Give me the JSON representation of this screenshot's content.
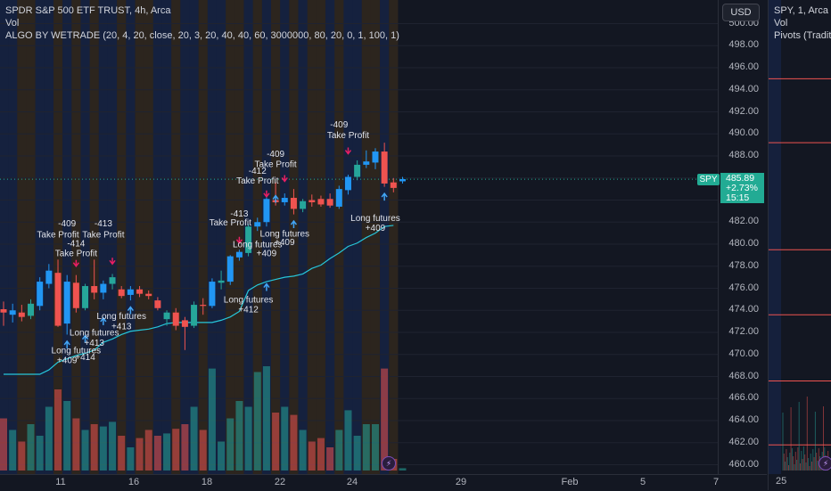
{
  "legend": {
    "title": "SPDR S&P 500 ETF TRUST, 4h, Arca",
    "vol": "Vol",
    "indicator": "ALGO BY WETRADE (20, 4, 20, close, 20, 3, 20, 40, 40, 60, 3000000, 80, 20, 0, 1, 100, 1)"
  },
  "currency_button": "USD",
  "last_price": {
    "symbol": "SPY",
    "price": "485.89",
    "change": "+2.73%",
    "countdown": "15:15"
  },
  "right_pane": {
    "title": "SPY, 1, Arca",
    "vol": "Vol",
    "pivots": "Pivots (Traditi",
    "time_label": "25"
  },
  "colors": {
    "up": "#26a69a",
    "up_alt": "#2196f3",
    "down": "#ef5350",
    "signal": "#e91e63",
    "arrow": "#42a5f5",
    "trail": "#26c6da",
    "bg": "#131722"
  },
  "chart_data": {
    "type": "candlestick",
    "ylim": [
      459.5,
      502
    ],
    "y_ticks": [
      "460.00",
      "462.00",
      "464.00",
      "466.00",
      "468.00",
      "470.00",
      "472.00",
      "474.00",
      "476.00",
      "478.00",
      "480.00",
      "482.00",
      "484.00",
      "486.00",
      "488.00",
      "490.00",
      "492.00",
      "494.00",
      "496.00",
      "498.00",
      "500.00"
    ],
    "x_ticks": [
      "11",
      "16",
      "18",
      "22",
      "24",
      "29",
      "Feb",
      "5",
      "7"
    ],
    "candles": [
      {
        "o": 474.1,
        "h": 474.8,
        "l": 472.6,
        "c": 473.8,
        "v": 0.45,
        "bg": "blue"
      },
      {
        "o": 473.6,
        "h": 474.6,
        "l": 472.9,
        "c": 474.0,
        "v": 0.35,
        "bg": "blue"
      },
      {
        "o": 473.8,
        "h": 474.5,
        "l": 473.0,
        "c": 473.4,
        "v": 0.25,
        "bg": "orange"
      },
      {
        "o": 473.5,
        "h": 475.0,
        "l": 473.2,
        "c": 474.6,
        "v": 0.4,
        "bg": "orange"
      },
      {
        "o": 474.4,
        "h": 477.0,
        "l": 474.0,
        "c": 476.6,
        "v": 0.3,
        "bg": "blue"
      },
      {
        "o": 476.4,
        "h": 478.2,
        "l": 476.0,
        "c": 477.6,
        "v": 0.55,
        "bg": "blue"
      },
      {
        "o": 477.4,
        "h": 478.6,
        "l": 472.5,
        "c": 472.6,
        "v": 0.7,
        "bg": "orange"
      },
      {
        "o": 472.8,
        "h": 477.2,
        "l": 471.8,
        "c": 476.6,
        "v": 0.6,
        "bg": "blue"
      },
      {
        "o": 476.5,
        "h": 477.2,
        "l": 473.8,
        "c": 474.2,
        "v": 0.45,
        "bg": "orange"
      },
      {
        "o": 474.2,
        "h": 476.4,
        "l": 474.0,
        "c": 476.2,
        "v": 0.35,
        "bg": "blue"
      },
      {
        "o": 476.2,
        "h": 478.6,
        "l": 475.0,
        "c": 475.6,
        "v": 0.4,
        "bg": "orange"
      },
      {
        "o": 475.6,
        "h": 476.7,
        "l": 475.0,
        "c": 476.4,
        "v": 0.38,
        "bg": "blue"
      },
      {
        "o": 476.4,
        "h": 477.3,
        "l": 475.9,
        "c": 477.0,
        "v": 0.42,
        "bg": "blue"
      },
      {
        "o": 475.9,
        "h": 476.2,
        "l": 475.1,
        "c": 475.3,
        "v": 0.3,
        "bg": "orange"
      },
      {
        "o": 475.4,
        "h": 476.2,
        "l": 474.9,
        "c": 475.9,
        "v": 0.2,
        "bg": "blue"
      },
      {
        "o": 475.9,
        "h": 476.2,
        "l": 475.2,
        "c": 475.5,
        "v": 0.28,
        "bg": "orange"
      },
      {
        "o": 475.5,
        "h": 475.8,
        "l": 475.0,
        "c": 475.3,
        "v": 0.35,
        "bg": "orange"
      },
      {
        "o": 474.9,
        "h": 475.2,
        "l": 474.0,
        "c": 474.2,
        "v": 0.3,
        "bg": "blue"
      },
      {
        "o": 473.2,
        "h": 474.0,
        "l": 472.6,
        "c": 473.8,
        "v": 0.32,
        "bg": "blue"
      },
      {
        "o": 473.8,
        "h": 474.2,
        "l": 472.2,
        "c": 472.6,
        "v": 0.36,
        "bg": "orange"
      },
      {
        "o": 473.1,
        "h": 473.4,
        "l": 470.4,
        "c": 472.5,
        "v": 0.4,
        "bg": "blue"
      },
      {
        "o": 472.6,
        "h": 474.8,
        "l": 472.4,
        "c": 474.5,
        "v": 0.55,
        "bg": "blue"
      },
      {
        "o": 474.5,
        "h": 475.1,
        "l": 473.6,
        "c": 474.4,
        "v": 0.35,
        "bg": "orange"
      },
      {
        "o": 474.4,
        "h": 476.9,
        "l": 474.2,
        "c": 476.6,
        "v": 0.88,
        "bg": "blue"
      },
      {
        "o": 476.5,
        "h": 477.6,
        "l": 475.9,
        "c": 476.7,
        "v": 0.25,
        "bg": "blue"
      },
      {
        "o": 476.6,
        "h": 479.0,
        "l": 476.3,
        "c": 478.9,
        "v": 0.45,
        "bg": "orange"
      },
      {
        "o": 478.8,
        "h": 479.5,
        "l": 478.5,
        "c": 479.3,
        "v": 0.6,
        "bg": "orange"
      },
      {
        "o": 479.2,
        "h": 481.8,
        "l": 478.9,
        "c": 481.6,
        "v": 0.55,
        "bg": "blue"
      },
      {
        "o": 481.6,
        "h": 482.4,
        "l": 481.2,
        "c": 482.0,
        "v": 0.85,
        "bg": "orange"
      },
      {
        "o": 482.0,
        "h": 484.4,
        "l": 481.6,
        "c": 484.1,
        "v": 0.9,
        "bg": "blue"
      },
      {
        "o": 484.0,
        "h": 485.6,
        "l": 483.5,
        "c": 483.8,
        "v": 0.5,
        "bg": "orange"
      },
      {
        "o": 483.8,
        "h": 484.6,
        "l": 483.5,
        "c": 484.2,
        "v": 0.55,
        "bg": "blue"
      },
      {
        "o": 484.2,
        "h": 485.0,
        "l": 482.7,
        "c": 483.2,
        "v": 0.48,
        "bg": "orange"
      },
      {
        "o": 483.2,
        "h": 484.1,
        "l": 482.9,
        "c": 483.9,
        "v": 0.35,
        "bg": "blue"
      },
      {
        "o": 484.0,
        "h": 484.5,
        "l": 483.4,
        "c": 483.8,
        "v": 0.25,
        "bg": "orange"
      },
      {
        "o": 484.1,
        "h": 484.4,
        "l": 483.4,
        "c": 483.6,
        "v": 0.28,
        "bg": "orange"
      },
      {
        "o": 484.1,
        "h": 484.6,
        "l": 483.3,
        "c": 483.5,
        "v": 0.2,
        "bg": "blue"
      },
      {
        "o": 483.4,
        "h": 485.3,
        "l": 483.2,
        "c": 485.0,
        "v": 0.35,
        "bg": "orange"
      },
      {
        "o": 484.9,
        "h": 486.3,
        "l": 484.5,
        "c": 486.1,
        "v": 0.52,
        "bg": "blue"
      },
      {
        "o": 486.1,
        "h": 487.6,
        "l": 485.8,
        "c": 487.2,
        "v": 0.3,
        "bg": "blue"
      },
      {
        "o": 487.2,
        "h": 488.5,
        "l": 486.9,
        "c": 487.5,
        "v": 0.4,
        "bg": "orange"
      },
      {
        "o": 487.4,
        "h": 488.7,
        "l": 486.8,
        "c": 488.4,
        "v": 0.4,
        "bg": "orange"
      },
      {
        "o": 488.4,
        "h": 489.2,
        "l": 485.2,
        "c": 485.5,
        "v": 0.88,
        "bg": "blue"
      },
      {
        "o": 485.6,
        "h": 486.0,
        "l": 484.7,
        "c": 485.1,
        "v": 0.1,
        "bg": "orange"
      },
      {
        "o": 485.7,
        "h": 486.1,
        "l": 485.5,
        "c": 485.9,
        "v": 0.02,
        "bg": "none"
      }
    ],
    "trail": [
      468.2,
      468.2,
      468.2,
      468.2,
      468.2,
      468.6,
      469.3,
      469.6,
      469.9,
      470.1,
      470.4,
      471.1,
      471.4,
      471.8,
      472.1,
      472.2,
      472.3,
      472.5,
      472.8,
      472.9,
      472.9,
      472.9,
      472.9,
      472.9,
      473.1,
      473.4,
      473.9,
      475.8,
      476.3,
      476.6,
      476.8,
      477.0,
      477.1,
      477.3,
      477.8,
      478.1,
      478.7,
      479.2,
      479.8,
      480.1,
      480.6,
      481.0,
      481.6,
      481.7
    ],
    "annotations": [
      {
        "text": "-409",
        "i": 7,
        "price": 481.6
      },
      {
        "text": "Take Profit",
        "i": 6,
        "price": 480.6
      },
      {
        "text": "-414",
        "i": 8,
        "price": 479.8
      },
      {
        "text": "Take Profit",
        "i": 8,
        "price": 478.9
      },
      {
        "text": "-413",
        "i": 11,
        "price": 481.6
      },
      {
        "text": "Take Profit",
        "i": 11,
        "price": 480.6
      },
      {
        "text": "Long futures",
        "i": 13,
        "price": 473.2
      },
      {
        "text": "+413",
        "i": 13,
        "price": 472.3
      },
      {
        "text": "Long futures",
        "i": 10,
        "price": 471.7
      },
      {
        "text": "+413",
        "i": 10,
        "price": 470.8
      },
      {
        "text": "Long futures",
        "i": 8,
        "price": 470.1
      },
      {
        "text": "+409",
        "i": 7,
        "price": 469.2
      },
      {
        "text": "+414",
        "i": 9,
        "price": 469.5
      },
      {
        "text": "-409",
        "i": 30,
        "price": 487.9
      },
      {
        "text": "Take Profit",
        "i": 30,
        "price": 487.0
      },
      {
        "text": "-412",
        "i": 28,
        "price": 486.4
      },
      {
        "text": "Take Profit",
        "i": 28,
        "price": 485.5
      },
      {
        "text": "-413",
        "i": 26,
        "price": 482.5
      },
      {
        "text": "Take Profit",
        "i": 25,
        "price": 481.7
      },
      {
        "text": "Long futures",
        "i": 31,
        "price": 480.7
      },
      {
        "text": "+409",
        "i": 31,
        "price": 479.9
      },
      {
        "text": "Long futures",
        "i": 28,
        "price": 479.7
      },
      {
        "text": "+409",
        "i": 29,
        "price": 478.9
      },
      {
        "text": "Long futures",
        "i": 27,
        "price": 474.7
      },
      {
        "text": "+412",
        "i": 27,
        "price": 473.8
      },
      {
        "text": "-409",
        "i": 37,
        "price": 490.6
      },
      {
        "text": "Take Profit",
        "i": 38,
        "price": 489.6
      },
      {
        "text": "Long futures",
        "i": 41,
        "price": 482.1
      },
      {
        "text": "+409",
        "i": 41,
        "price": 481.2
      }
    ],
    "signals": [
      {
        "type": "sell",
        "i": 8,
        "price": 478.0
      },
      {
        "type": "sell",
        "i": 12,
        "price": 478.2
      },
      {
        "type": "sell",
        "i": 26,
        "price": 480.1
      },
      {
        "type": "sell",
        "i": 29,
        "price": 484.3
      },
      {
        "type": "sell",
        "i": 31,
        "price": 485.7
      },
      {
        "type": "sell",
        "i": 38,
        "price": 488.2
      },
      {
        "type": "buy",
        "i": 7,
        "price": 471.2
      },
      {
        "type": "buy",
        "i": 9,
        "price": 471.7
      },
      {
        "type": "buy",
        "i": 11,
        "price": 473.3
      },
      {
        "type": "buy",
        "i": 14,
        "price": 474.3
      },
      {
        "type": "buy",
        "i": 29,
        "price": 476.4
      },
      {
        "type": "buy",
        "i": 32,
        "price": 482.1
      },
      {
        "type": "buy",
        "i": 30,
        "price": 484.4
      },
      {
        "type": "buy",
        "i": 42,
        "price": 484.6
      }
    ],
    "right_pane_levels": [
      495.0,
      489.2,
      479.5,
      473.6,
      467.6,
      461.8
    ]
  }
}
